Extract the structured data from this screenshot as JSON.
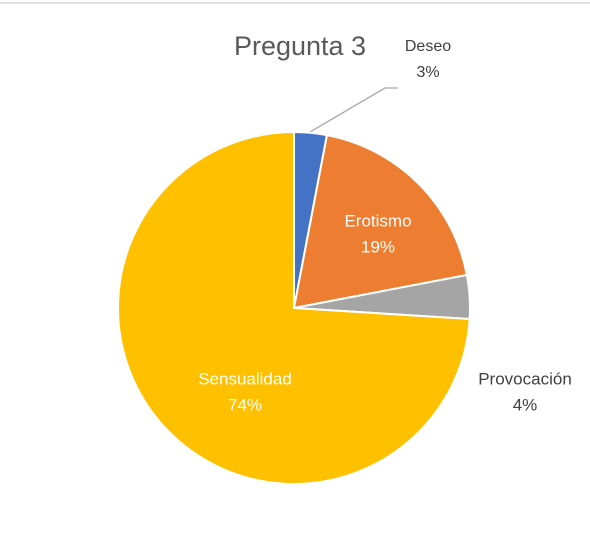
{
  "chart_data": {
    "type": "pie",
    "title": "Pregunta 3",
    "categories": [
      "Deseo",
      "Erotismo",
      "Provocación",
      "Sensualidad"
    ],
    "values": [
      3,
      19,
      4,
      74
    ],
    "value_labels": [
      "3%",
      "19%",
      "4%",
      "74%"
    ],
    "colors": [
      "#4472c4",
      "#ed7d31",
      "#a5a5a5",
      "#ffc000"
    ]
  }
}
